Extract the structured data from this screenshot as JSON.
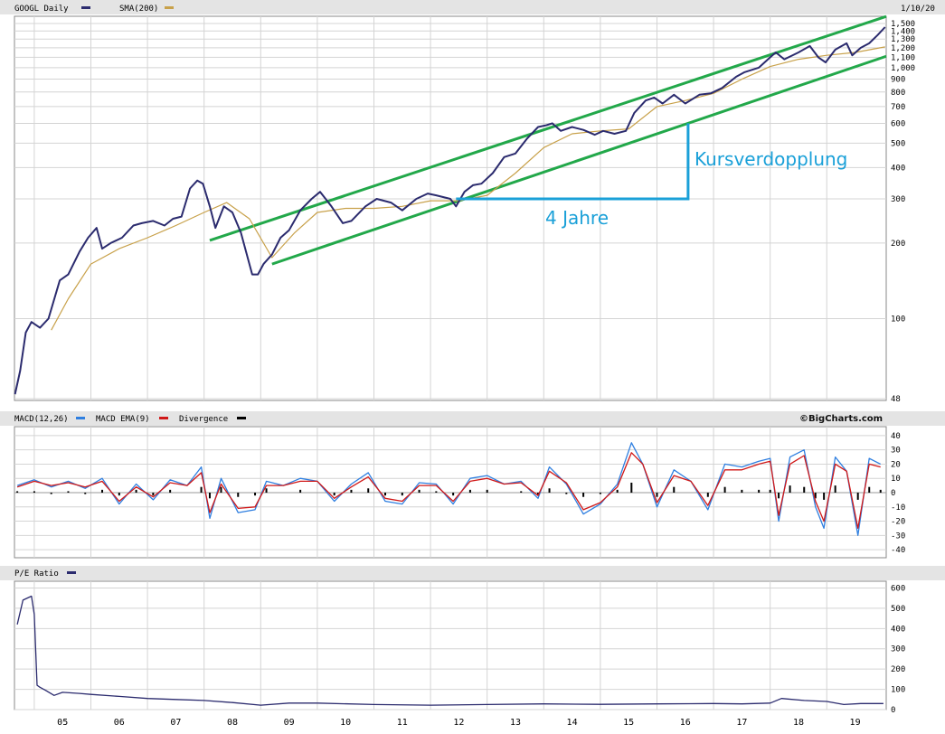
{
  "header": {
    "symbol_label": "GOOGL Daily",
    "sma_label": "SMA(200)",
    "date_label": "1/10/20",
    "macd_label": "MACD(12,26)",
    "macd_ema_label": "MACD EMA(9)",
    "divergence_label": "Divergence",
    "credit": "©BigCharts.com",
    "pe_label": "P/E Ratio"
  },
  "colors": {
    "price": "#2b2b6e",
    "sma": "#c8a14a",
    "channel": "#22a84a",
    "annotation": "#1aa0d8",
    "macd": "#2f7fe0",
    "macd_ema": "#d01818",
    "divergence": "#000000",
    "pe": "#2b2b6e",
    "grid": "#d4d4d4",
    "header_bg": "#e4e4e4"
  },
  "x_labels": [
    "05",
    "06",
    "07",
    "08",
    "09",
    "10",
    "11",
    "12",
    "13",
    "14",
    "15",
    "16",
    "17",
    "18",
    "19"
  ],
  "annotations": {
    "doubling": "Kursverdopplung",
    "years": "4 Jahre"
  },
  "chart_data": [
    {
      "type": "line",
      "title": "GOOGL Daily",
      "scale": "log",
      "ylim": [
        48,
        1550
      ],
      "yticks": [
        "48",
        "100",
        "200",
        "300",
        "400",
        "500",
        "600",
        "700",
        "800",
        "900",
        "1,000",
        "1,100",
        "1,200",
        "1,300",
        "1,400",
        "1,500"
      ],
      "ytick_values": [
        48,
        100,
        200,
        300,
        400,
        500,
        600,
        700,
        800,
        900,
        1000,
        1100,
        1200,
        1300,
        1400,
        1500
      ],
      "xlim": [
        2004.65,
        2020.05
      ],
      "series": [
        {
          "name": "GOOGL Daily",
          "x": [
            2004.66,
            2004.75,
            2004.85,
            2004.95,
            2005.1,
            2005.25,
            2005.45,
            2005.6,
            2005.8,
            2005.95,
            2006.1,
            2006.2,
            2006.35,
            2006.55,
            2006.75,
            2006.9,
            2007.1,
            2007.3,
            2007.45,
            2007.6,
            2007.75,
            2007.88,
            2007.98,
            2008.1,
            2008.2,
            2008.35,
            2008.5,
            2008.65,
            2008.85,
            2008.95,
            2009.05,
            2009.2,
            2009.35,
            2009.5,
            2009.7,
            2009.9,
            2010.05,
            2010.25,
            2010.45,
            2010.6,
            2010.85,
            2011.05,
            2011.3,
            2011.5,
            2011.75,
            2011.95,
            2012.1,
            2012.35,
            2012.45,
            2012.6,
            2012.75,
            2012.9,
            2013.1,
            2013.3,
            2013.5,
            2013.7,
            2013.9,
            2014.05,
            2014.15,
            2014.3,
            2014.5,
            2014.7,
            2014.9,
            2015.05,
            2015.25,
            2015.45,
            2015.6,
            2015.8,
            2015.95,
            2016.1,
            2016.3,
            2016.5,
            2016.75,
            2016.95,
            2017.15,
            2017.4,
            2017.55,
            2017.8,
            2018.0,
            2018.1,
            2018.25,
            2018.5,
            2018.7,
            2018.85,
            2018.98,
            2019.15,
            2019.35,
            2019.45,
            2019.6,
            2019.75,
            2019.9,
            2020.03
          ],
          "y": [
            50,
            62,
            88,
            97,
            92,
            100,
            142,
            150,
            185,
            210,
            230,
            190,
            200,
            210,
            235,
            240,
            245,
            235,
            250,
            255,
            330,
            355,
            345,
            280,
            230,
            280,
            265,
            220,
            150,
            150,
            165,
            180,
            210,
            225,
            270,
            300,
            320,
            280,
            240,
            245,
            280,
            300,
            290,
            270,
            300,
            315,
            310,
            300,
            280,
            320,
            340,
            345,
            380,
            440,
            455,
            520,
            580,
            590,
            600,
            560,
            580,
            565,
            540,
            560,
            545,
            560,
            660,
            740,
            760,
            720,
            780,
            720,
            780,
            790,
            830,
            920,
            960,
            1000,
            1100,
            1150,
            1080,
            1150,
            1220,
            1100,
            1050,
            1180,
            1250,
            1120,
            1200,
            1250,
            1350,
            1450
          ]
        },
        {
          "name": "SMA(200)",
          "x": [
            2005.3,
            2005.6,
            2006.0,
            2006.5,
            2007.0,
            2007.5,
            2008.0,
            2008.4,
            2008.8,
            2009.2,
            2009.6,
            2010.0,
            2010.5,
            2011.0,
            2011.5,
            2012.0,
            2012.5,
            2013.0,
            2013.5,
            2014.0,
            2014.5,
            2015.0,
            2015.5,
            2016.0,
            2016.5,
            2017.0,
            2017.5,
            2018.0,
            2018.5,
            2019.0,
            2019.5,
            2020.03
          ],
          "y": [
            90,
            120,
            165,
            190,
            210,
            235,
            265,
            290,
            250,
            175,
            220,
            265,
            275,
            275,
            280,
            295,
            295,
            310,
            380,
            480,
            545,
            560,
            570,
            700,
            740,
            790,
            900,
            1010,
            1080,
            1120,
            1150,
            1210
          ]
        }
      ]
    },
    {
      "type": "line",
      "title": "MACD(12,26)",
      "ylim": [
        -45,
        45
      ],
      "yticks": [
        "40",
        "30",
        "20",
        "10",
        "0",
        "-10",
        "-20",
        "-30",
        "-40"
      ],
      "ytick_values": [
        40,
        30,
        20,
        10,
        0,
        -10,
        -20,
        -30,
        -40
      ],
      "series": [
        {
          "name": "MACD(12,26)",
          "x": [
            2004.7,
            2005.0,
            2005.3,
            2005.6,
            2005.9,
            2006.2,
            2006.5,
            2006.8,
            2007.1,
            2007.4,
            2007.7,
            2007.95,
            2008.1,
            2008.3,
            2008.6,
            2008.9,
            2009.1,
            2009.4,
            2009.7,
            2010.0,
            2010.3,
            2010.6,
            2010.9,
            2011.2,
            2011.5,
            2011.8,
            2012.1,
            2012.4,
            2012.7,
            2013.0,
            2013.3,
            2013.6,
            2013.9,
            2014.1,
            2014.4,
            2014.7,
            2015.0,
            2015.3,
            2015.55,
            2015.75,
            2016.0,
            2016.3,
            2016.6,
            2016.9,
            2017.2,
            2017.5,
            2017.8,
            2018.0,
            2018.15,
            2018.35,
            2018.6,
            2018.8,
            2018.95,
            2019.15,
            2019.35,
            2019.55,
            2019.75,
            2019.95
          ],
          "y": [
            5,
            9,
            4,
            8,
            3,
            10,
            -8,
            6,
            -5,
            9,
            5,
            18,
            -18,
            10,
            -14,
            -12,
            8,
            5,
            10,
            8,
            -6,
            6,
            14,
            -6,
            -8,
            7,
            6,
            -8,
            10,
            12,
            6,
            8,
            -4,
            18,
            6,
            -15,
            -8,
            6,
            35,
            20,
            -10,
            16,
            8,
            -12,
            20,
            18,
            22,
            24,
            -20,
            25,
            30,
            -10,
            -25,
            25,
            15,
            -30,
            24,
            20
          ]
        },
        {
          "name": "MACD EMA(9)",
          "x": [
            2004.7,
            2005.0,
            2005.3,
            2005.6,
            2005.9,
            2006.2,
            2006.5,
            2006.8,
            2007.1,
            2007.4,
            2007.7,
            2007.95,
            2008.1,
            2008.3,
            2008.6,
            2008.9,
            2009.1,
            2009.4,
            2009.7,
            2010.0,
            2010.3,
            2010.6,
            2010.9,
            2011.2,
            2011.5,
            2011.8,
            2012.1,
            2012.4,
            2012.7,
            2013.0,
            2013.3,
            2013.6,
            2013.9,
            2014.1,
            2014.4,
            2014.7,
            2015.0,
            2015.3,
            2015.55,
            2015.75,
            2016.0,
            2016.3,
            2016.6,
            2016.9,
            2017.2,
            2017.5,
            2017.8,
            2018.0,
            2018.15,
            2018.35,
            2018.6,
            2018.8,
            2018.95,
            2019.15,
            2019.35,
            2019.55,
            2019.75,
            2019.95
          ],
          "y": [
            4,
            8,
            5,
            7,
            4,
            8,
            -6,
            4,
            -3,
            7,
            5,
            14,
            -14,
            6,
            -11,
            -10,
            5,
            5,
            8,
            8,
            -4,
            4,
            11,
            -4,
            -6,
            5,
            5,
            -6,
            8,
            10,
            6,
            7,
            -2,
            15,
            7,
            -12,
            -7,
            4,
            28,
            20,
            -7,
            12,
            8,
            -9,
            16,
            16,
            20,
            22,
            -16,
            20,
            26,
            -6,
            -20,
            20,
            15,
            -25,
            20,
            18
          ]
        },
        {
          "name": "Divergence",
          "x": [
            2004.7,
            2005.0,
            2005.3,
            2005.6,
            2005.9,
            2006.2,
            2006.5,
            2006.8,
            2007.1,
            2007.4,
            2007.7,
            2007.95,
            2008.1,
            2008.3,
            2008.6,
            2008.9,
            2009.1,
            2009.4,
            2009.7,
            2010.0,
            2010.3,
            2010.6,
            2010.9,
            2011.2,
            2011.5,
            2011.8,
            2012.1,
            2012.4,
            2012.7,
            2013.0,
            2013.3,
            2013.6,
            2013.9,
            2014.1,
            2014.4,
            2014.7,
            2015.0,
            2015.3,
            2015.55,
            2015.75,
            2016.0,
            2016.3,
            2016.6,
            2016.9,
            2017.2,
            2017.5,
            2017.8,
            2018.0,
            2018.15,
            2018.35,
            2018.6,
            2018.8,
            2018.95,
            2019.15,
            2019.35,
            2019.55,
            2019.75,
            2019.95
          ],
          "y": [
            1,
            1,
            -1,
            1,
            -1,
            2,
            -2,
            2,
            -2,
            2,
            0,
            4,
            -4,
            4,
            -3,
            -2,
            3,
            0,
            2,
            0,
            -2,
            2,
            3,
            -2,
            -2,
            2,
            1,
            -2,
            2,
            2,
            0,
            1,
            -2,
            3,
            -1,
            -3,
            -1,
            2,
            7,
            0,
            -3,
            4,
            0,
            -3,
            4,
            2,
            2,
            2,
            -4,
            5,
            4,
            -4,
            -5,
            5,
            0,
            -5,
            4,
            2
          ]
        }
      ]
    },
    {
      "type": "line",
      "title": "P/E Ratio",
      "ylim": [
        0,
        620
      ],
      "yticks": [
        "600",
        "500",
        "400",
        "300",
        "200",
        "100",
        "0"
      ],
      "ytick_values": [
        600,
        500,
        400,
        300,
        200,
        100,
        0
      ],
      "series": [
        {
          "name": "P/E Ratio",
          "x": [
            2004.7,
            2004.8,
            2004.95,
            2005.0,
            2005.05,
            2005.1,
            2005.2,
            2005.35,
            2005.5,
            2005.8,
            2006.0,
            2006.5,
            2007.0,
            2007.5,
            2008.0,
            2008.5,
            2009.0,
            2009.5,
            2010.0,
            2011.0,
            2012.0,
            2013.0,
            2014.0,
            2015.0,
            2016.0,
            2017.0,
            2017.5,
            2018.0,
            2018.2,
            2018.6,
            2019.0,
            2019.3,
            2019.6,
            2020.0
          ],
          "y": [
            420,
            540,
            560,
            470,
            120,
            110,
            95,
            70,
            85,
            80,
            75,
            65,
            55,
            50,
            45,
            35,
            22,
            32,
            32,
            25,
            22,
            25,
            28,
            26,
            28,
            30,
            28,
            32,
            55,
            45,
            40,
            25,
            30,
            30
          ]
        }
      ]
    }
  ]
}
